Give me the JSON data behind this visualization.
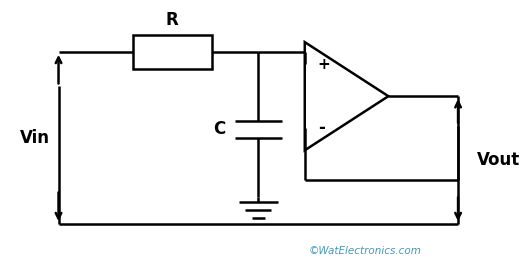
{
  "background_color": "#ffffff",
  "line_color": "#000000",
  "line_width": 1.8,
  "text_color": "#000000",
  "watermark_color": "#4499bb",
  "watermark": "©WatElectronics.com",
  "label_vin": "Vin",
  "label_vout": "Vout",
  "label_R": "R",
  "label_C": "C",
  "label_plus": "+",
  "label_minus": "-",
  "figsize": [
    5.25,
    2.76
  ],
  "dpi": 100,
  "xlim": [
    0,
    10.5
  ],
  "ylim": [
    0,
    5.5
  ]
}
